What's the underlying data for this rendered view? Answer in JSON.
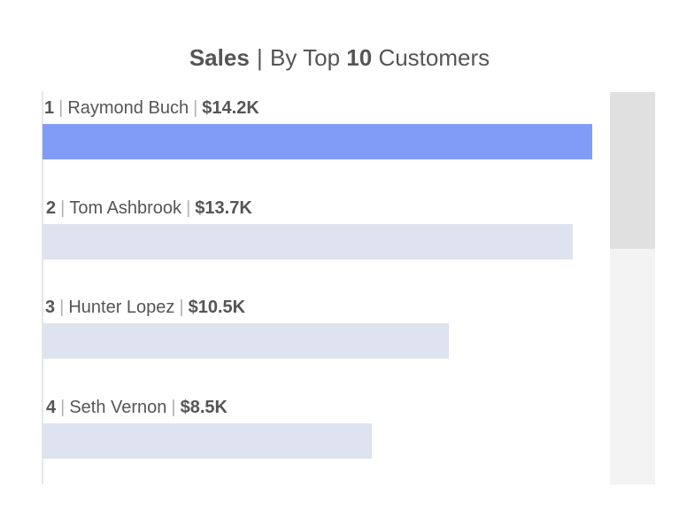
{
  "title": {
    "metric": "Sales",
    "separator": "|",
    "prefix": "By Top",
    "count": "10",
    "suffix": "Customers"
  },
  "chart_data": {
    "type": "bar",
    "orientation": "horizontal",
    "title": "Sales | By Top 10 Customers",
    "categories": [
      "Raymond Buch",
      "Tom Ashbrook",
      "Hunter Lopez",
      "Seth Vernon"
    ],
    "ranks": [
      "1",
      "2",
      "3",
      "4"
    ],
    "value_labels": [
      "$14.2K",
      "$13.7K",
      "$10.5K",
      "$8.5K"
    ],
    "values": [
      14.2,
      13.7,
      10.5,
      8.5
    ],
    "unit": "$K",
    "xlim": [
      0,
      14.2
    ],
    "grid": false,
    "highlight_index": 0,
    "colors": {
      "highlight": "#809cf7",
      "normal": "#dfe3ef"
    }
  },
  "scrollbar": {
    "visible_fraction": 0.4
  }
}
